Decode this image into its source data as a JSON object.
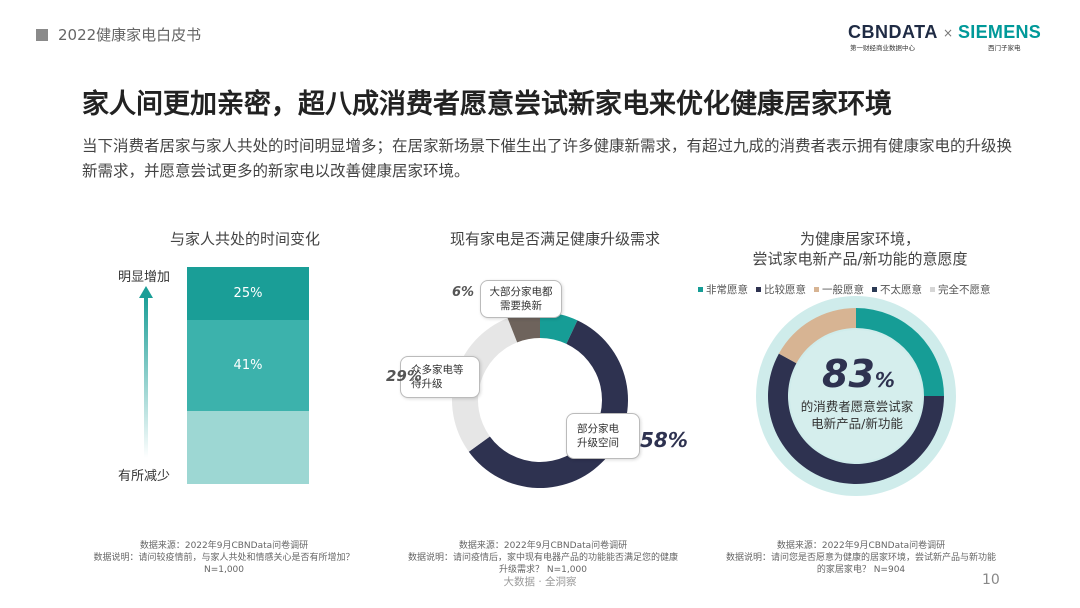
{
  "header": {
    "label": "2022健康家电白皮书"
  },
  "brand": {
    "cbndata": "CBNDATA",
    "cbndata_sub": "第一财经商业数据中心",
    "x": "×",
    "siemens": "SIEMENS",
    "siemens_sub": "西门子家电"
  },
  "title": "家人间更加亲密，超八成消费者愿意尝试新家电来优化健康居家环境",
  "lead": "当下消费者居家与家人共处的时间明显增多；在居家新场景下催生出了许多健康新需求，有超过九成的消费者表示拥有健康家电的升级换新需求，并愿意尝试更多的新家电以改善健康居家环境。",
  "panels": {
    "left_title": "与家人共处的时间变化",
    "mid_title": "现有家电是否满足健康升级需求",
    "right_title_1": "为健康居家环境，",
    "right_title_2": "尝试家电新产品/新功能的意愿度"
  },
  "arrow": {
    "top_label": "明显增加",
    "bottom_label": "有所减少"
  },
  "center": {
    "big": "83",
    "pct_sign": "%",
    "line1": "的消费者愿意尝试家",
    "line2": "电新产品/新功能"
  },
  "sources": {
    "left": [
      "数据来源：2022年9月CBNData问卷调研",
      "数据说明：请问较疫情前，与家人共处和情感关心是否有所增加？",
      "N=1,000"
    ],
    "mid": [
      "数据来源：2022年9月CBNData问卷调研",
      "数据说明：请问疫情后，家中现有电器产品的功能能否满足您的健康",
      "升级需求？ N=1,000"
    ],
    "right": [
      "数据来源：2022年9月CBNData问卷调研",
      "数据说明：请问您是否愿意为健康的居家环境，尝试新产品与新功能",
      "的家居家电？ N=904"
    ]
  },
  "footer": {
    "tag": "大数据 · 全洞察",
    "page": "10"
  },
  "chart_data": [
    {
      "type": "bar",
      "title": "与家人共处的时间变化",
      "categories": [
        "",
        ""
      ],
      "series": [],
      "segments": [
        {
          "label": "25%",
          "value": 25,
          "color": "#1a9e97"
        },
        {
          "label": "41%",
          "value": 41,
          "color": "#3cb2ac"
        },
        {
          "label": "",
          "value": 34,
          "color": "#9dd7d3"
        }
      ]
    },
    {
      "type": "pie",
      "title": "现有家电是否满足健康升级需求",
      "slices": [
        {
          "label": "",
          "value": 7,
          "color": "#169d96"
        },
        {
          "label": "部分家电升级空间",
          "value": 58,
          "pct_label": "58%",
          "color": "#2e3250"
        },
        {
          "label": "众多家电等待升级",
          "value": 29,
          "pct_label": "29%",
          "color": "#e6e6e6"
        },
        {
          "label": "大部分家电都需要换新",
          "value": 6,
          "pct_label": "6%",
          "color": "#6e635c"
        }
      ]
    },
    {
      "type": "pie",
      "title": "为健康居家环境，尝试家电新产品/新功能的意愿度",
      "legend": [
        "非常愿意",
        "比较愿意",
        "一般愿意",
        "不太愿意",
        "完全不愿意"
      ],
      "legend_colors": [
        "#169d96",
        "#2e3250",
        "#d7b493",
        "#2b3a55",
        "#d6d6d6"
      ],
      "slices": [
        {
          "label": "非常愿意",
          "value": 25,
          "color": "#169d96"
        },
        {
          "label": "比较愿意",
          "value": 58,
          "color": "#2e3250"
        },
        {
          "label": "一般愿意",
          "value": 17,
          "color": "#d7b493"
        }
      ]
    }
  ]
}
